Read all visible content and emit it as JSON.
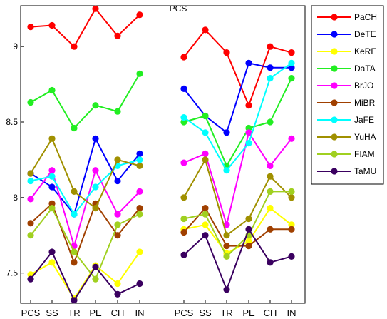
{
  "chart_data": {
    "type": "line",
    "title": "PCS",
    "ylim": [
      7.3,
      9.27
    ],
    "yticks": [
      "7.5",
      "8",
      "8.5",
      "9"
    ],
    "ytick_values": [
      7.5,
      8,
      8.5,
      9
    ],
    "grid": false,
    "legend_position": "right",
    "panels": [
      {
        "categories": [
          "PCS",
          "SS",
          "TR",
          "PE",
          "CH",
          "IN"
        ]
      },
      {
        "categories": [
          "PCS",
          "SS",
          "TR",
          "PE",
          "CH",
          "IN"
        ]
      }
    ],
    "series": [
      {
        "name": "PaCH",
        "color": "#ff0000",
        "values": [
          [
            9.13,
            9.14,
            9.0,
            9.25,
            9.07,
            9.21
          ],
          [
            8.93,
            9.11,
            8.96,
            8.61,
            9.0,
            8.96
          ]
        ]
      },
      {
        "name": "DeTE",
        "color": "#0000ff",
        "values": [
          [
            8.16,
            8.07,
            7.89,
            8.39,
            8.11,
            8.29
          ],
          [
            8.72,
            8.54,
            8.43,
            8.89,
            8.86,
            8.86
          ]
        ]
      },
      {
        "name": "KeRE",
        "color": "#ffff00",
        "values": [
          [
            7.49,
            7.57,
            7.33,
            7.55,
            7.43,
            7.64
          ],
          [
            7.79,
            7.82,
            7.63,
            7.71,
            7.93,
            7.82
          ]
        ]
      },
      {
        "name": "DaTA",
        "color": "#22ee22",
        "values": [
          [
            8.63,
            8.71,
            8.46,
            8.61,
            8.57,
            8.82
          ],
          [
            8.5,
            8.54,
            8.21,
            8.46,
            8.5,
            8.79
          ]
        ]
      },
      {
        "name": "BrJO",
        "color": "#ff00ff",
        "values": [
          [
            7.99,
            8.18,
            7.68,
            8.18,
            7.89,
            8.04
          ],
          [
            8.23,
            8.29,
            7.82,
            8.43,
            8.21,
            8.39
          ]
        ]
      },
      {
        "name": "MiBR",
        "color": "#a04000",
        "values": [
          [
            7.83,
            7.96,
            7.57,
            7.96,
            7.75,
            7.93
          ],
          [
            7.77,
            7.93,
            7.68,
            7.68,
            7.79,
            7.79
          ]
        ]
      },
      {
        "name": "JaFE",
        "color": "#00ffff",
        "values": [
          [
            8.11,
            8.14,
            7.89,
            8.07,
            8.21,
            8.25
          ],
          [
            8.53,
            8.43,
            8.18,
            8.36,
            8.79,
            8.89
          ]
        ]
      },
      {
        "name": "YuHA",
        "color": "#a09000",
        "values": [
          [
            8.16,
            8.39,
            8.04,
            7.93,
            8.25,
            8.21
          ],
          [
            8.0,
            8.25,
            7.75,
            7.86,
            8.14,
            8.0
          ]
        ]
      },
      {
        "name": "FIAM",
        "color": "#a0d020",
        "values": [
          [
            7.75,
            7.93,
            7.64,
            7.46,
            7.82,
            7.89
          ],
          [
            7.86,
            7.89,
            7.61,
            7.75,
            8.04,
            8.04
          ]
        ]
      },
      {
        "name": "TaMU",
        "color": "#3a0060",
        "values": [
          [
            7.46,
            7.64,
            7.32,
            7.54,
            7.36,
            7.43
          ],
          [
            7.62,
            7.75,
            7.39,
            7.79,
            7.57,
            7.61
          ]
        ]
      }
    ]
  }
}
